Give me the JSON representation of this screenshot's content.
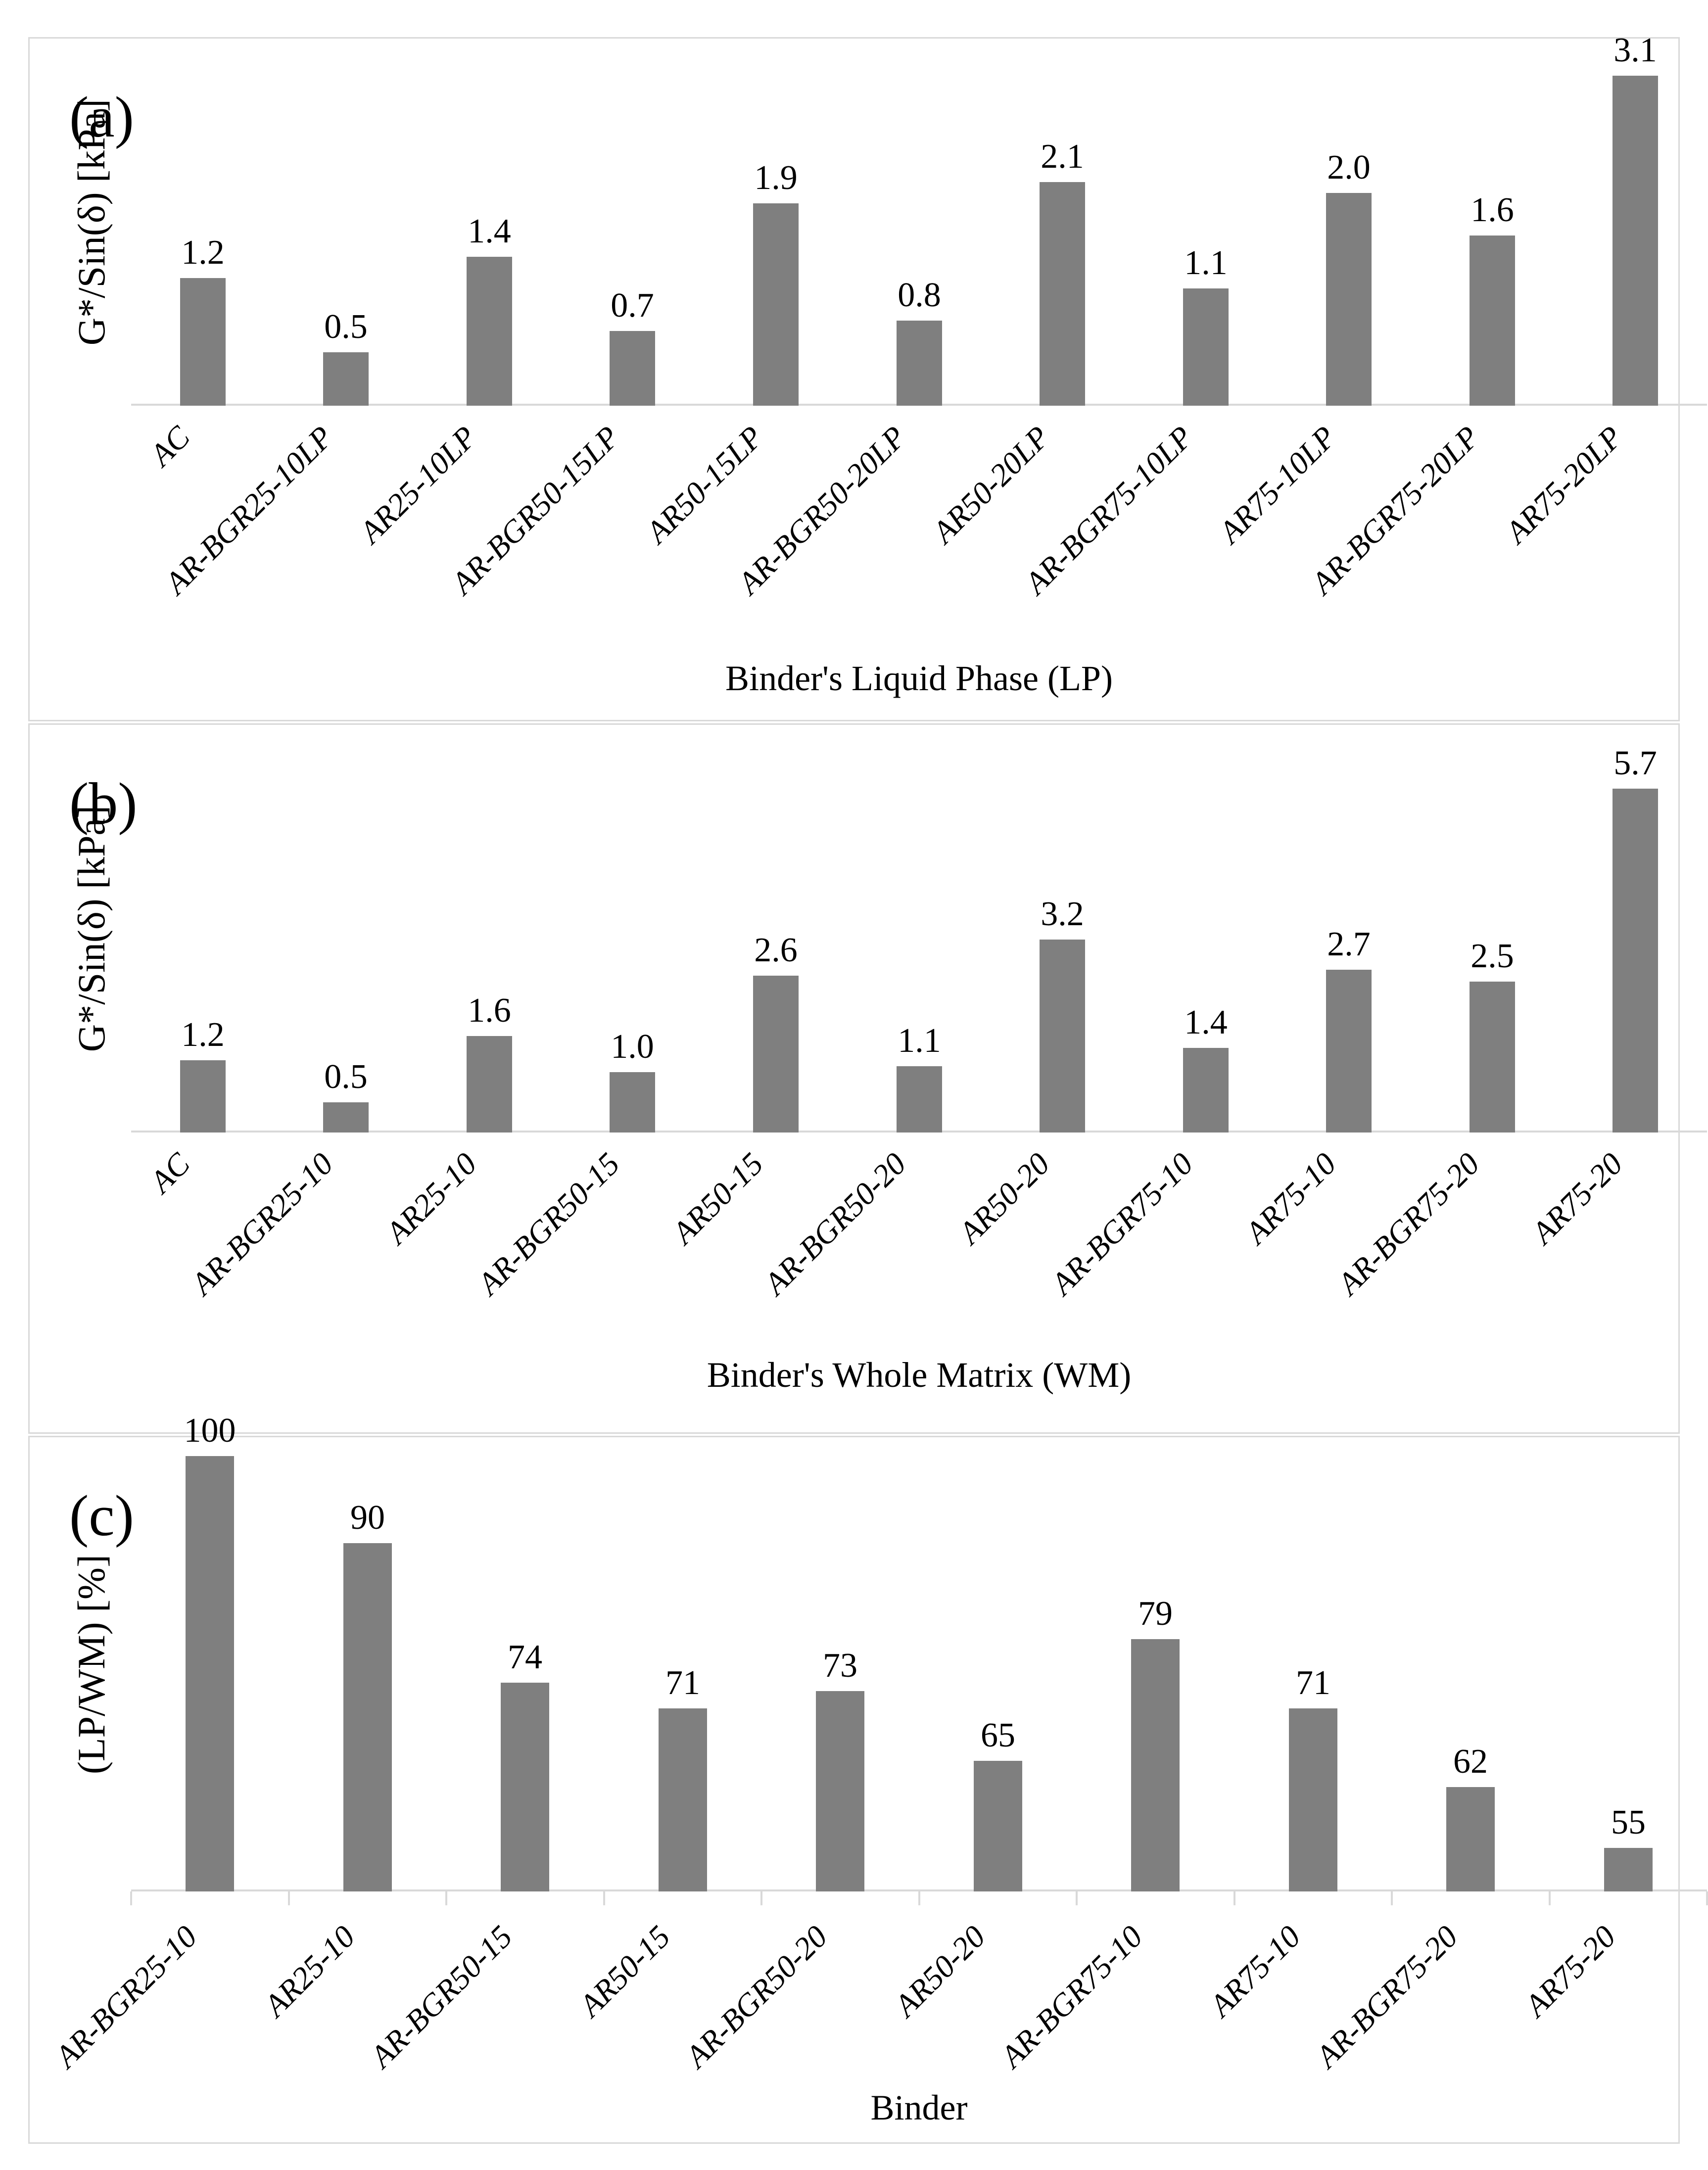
{
  "colors": {
    "bar": "#7f7f7f",
    "axis_line": "#d9d9d9",
    "panel_border": "#d9d9d9",
    "text": "#000000",
    "background": "#ffffff"
  },
  "chart_data": [
    {
      "type": "bar",
      "panel_label": "(a)",
      "title": "",
      "categories": [
        "AC",
        "AR-BGR25-10LP",
        "AR25-10LP",
        "AR-BGR50-15LP",
        "AR50-15LP",
        "AR-BGR50-20LP",
        "AR50-20LP",
        "AR-BGR75-10LP",
        "AR75-10LP",
        "AR-BGR75-20LP",
        "AR75-20LP"
      ],
      "values": [
        1.2,
        0.5,
        1.4,
        0.7,
        1.9,
        0.8,
        2.1,
        1.1,
        2.0,
        1.6,
        3.1
      ],
      "value_labels": [
        "1.2",
        "0.5",
        "1.4",
        "0.7",
        "1.9",
        "0.8",
        "2.1",
        "1.1",
        "2.0",
        "1.6",
        "3.1"
      ],
      "xlabel": "Binder's Liquid Phase (LP)",
      "ylabel": "G*/Sin(δ) [kPa]",
      "ylim": [
        0,
        3.5
      ],
      "grid": false,
      "legend": "none",
      "bar_color": "#7f7f7f"
    },
    {
      "type": "bar",
      "panel_label": "(b)",
      "title": "",
      "categories": [
        "AC",
        "AR-BGR25-10",
        "AR25-10",
        "AR-BGR50-15",
        "AR50-15",
        "AR-BGR50-20",
        "AR50-20",
        "AR-BGR75-10",
        "AR75-10",
        "AR-BGR75-20",
        "AR75-20"
      ],
      "values": [
        1.2,
        0.5,
        1.6,
        1.0,
        2.6,
        1.1,
        3.2,
        1.4,
        2.7,
        2.5,
        5.7
      ],
      "value_labels": [
        "1.2",
        "0.5",
        "1.6",
        "1.0",
        "2.6",
        "1.1",
        "3.2",
        "1.4",
        "2.7",
        "2.5",
        "5.7"
      ],
      "xlabel": "Binder's Whole Matrix (WM)",
      "ylabel": "G*/Sin(δ) [kPa]",
      "ylim": [
        0,
        6.5
      ],
      "grid": false,
      "legend": "none",
      "bar_color": "#7f7f7f"
    },
    {
      "type": "bar",
      "panel_label": "(c)",
      "title": "",
      "categories": [
        "AR-BGR25-10",
        "AR25-10",
        "AR-BGR50-15",
        "AR50-15",
        "AR-BGR50-20",
        "AR50-20",
        "AR-BGR75-10",
        "AR75-10",
        "AR-BGR75-20",
        "AR75-20"
      ],
      "values": [
        100,
        90,
        74,
        71,
        73,
        65,
        79,
        71,
        62,
        55
      ],
      "value_labels": [
        "100",
        "90",
        "74",
        "71",
        "73",
        "65",
        "79",
        "71",
        "62",
        "55"
      ],
      "xlabel": "Binder",
      "ylabel": "(LP/WM) [%]",
      "ylim": [
        50,
        100
      ],
      "grid": false,
      "legend": "none",
      "bar_color": "#7f7f7f"
    }
  ]
}
